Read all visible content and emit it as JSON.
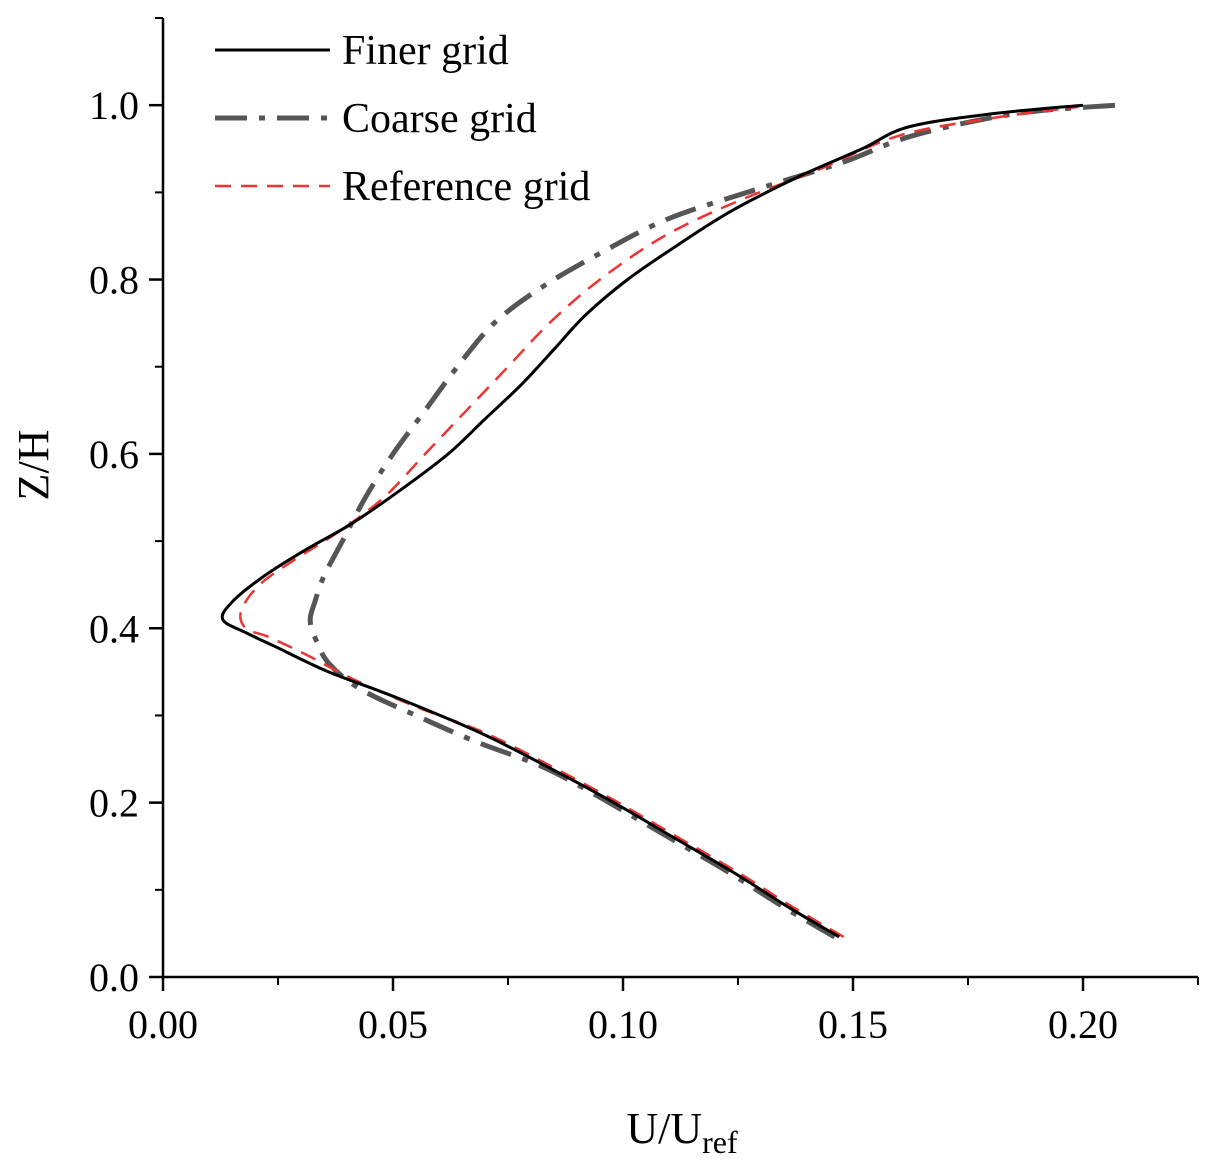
{
  "chart_data": {
    "type": "line",
    "title": "",
    "xlabel": "U/U",
    "xlabel_sub": "ref",
    "ylabel": "Z/H",
    "xlim": [
      0,
      0.225
    ],
    "ylim": [
      0,
      1.1
    ],
    "grid": false,
    "legend_position": "top-left",
    "x_ticks": [
      {
        "value": 0.0,
        "label": "0.00"
      },
      {
        "value": 0.05,
        "label": "0.05"
      },
      {
        "value": 0.1,
        "label": "0.10"
      },
      {
        "value": 0.15,
        "label": "0.15"
      },
      {
        "value": 0.2,
        "label": "0.20"
      }
    ],
    "y_ticks": [
      {
        "value": 0.0,
        "label": "0.0"
      },
      {
        "value": 0.2,
        "label": "0.2"
      },
      {
        "value": 0.4,
        "label": "0.4"
      },
      {
        "value": 0.6,
        "label": "0.6"
      },
      {
        "value": 0.8,
        "label": "0.8"
      },
      {
        "value": 1.0,
        "label": "1.0"
      }
    ],
    "series": [
      {
        "name": "Finer grid",
        "color": "#000000",
        "style": "solid",
        "points": [
          [
            0.147,
            0.046
          ],
          [
            0.136,
            0.08
          ],
          [
            0.124,
            0.12
          ],
          [
            0.111,
            0.16
          ],
          [
            0.098,
            0.2
          ],
          [
            0.084,
            0.24
          ],
          [
            0.069,
            0.28
          ],
          [
            0.051,
            0.32
          ],
          [
            0.036,
            0.35
          ],
          [
            0.024,
            0.38
          ],
          [
            0.018,
            0.395
          ],
          [
            0.013,
            0.41
          ],
          [
            0.015,
            0.43
          ],
          [
            0.022,
            0.46
          ],
          [
            0.031,
            0.49
          ],
          [
            0.041,
            0.52
          ],
          [
            0.052,
            0.56
          ],
          [
            0.062,
            0.6
          ],
          [
            0.07,
            0.64
          ],
          [
            0.078,
            0.68
          ],
          [
            0.085,
            0.72
          ],
          [
            0.092,
            0.76
          ],
          [
            0.101,
            0.8
          ],
          [
            0.112,
            0.84
          ],
          [
            0.124,
            0.88
          ],
          [
            0.139,
            0.92
          ],
          [
            0.152,
            0.95
          ],
          [
            0.162,
            0.975
          ],
          [
            0.18,
            0.99
          ],
          [
            0.2,
            1.0
          ]
        ]
      },
      {
        "name": "Coarse grid",
        "color": "#555555",
        "style": "dashdot",
        "points": [
          [
            0.146,
            0.046
          ],
          [
            0.135,
            0.08
          ],
          [
            0.123,
            0.12
          ],
          [
            0.11,
            0.16
          ],
          [
            0.097,
            0.2
          ],
          [
            0.083,
            0.24
          ],
          [
            0.068,
            0.27
          ],
          [
            0.055,
            0.3
          ],
          [
            0.043,
            0.33
          ],
          [
            0.036,
            0.36
          ],
          [
            0.033,
            0.39
          ],
          [
            0.032,
            0.41
          ],
          [
            0.033,
            0.43
          ],
          [
            0.035,
            0.46
          ],
          [
            0.039,
            0.5
          ],
          [
            0.044,
            0.55
          ],
          [
            0.05,
            0.6
          ],
          [
            0.057,
            0.65
          ],
          [
            0.064,
            0.7
          ],
          [
            0.072,
            0.75
          ],
          [
            0.082,
            0.79
          ],
          [
            0.095,
            0.83
          ],
          [
            0.11,
            0.87
          ],
          [
            0.13,
            0.905
          ],
          [
            0.148,
            0.935
          ],
          [
            0.163,
            0.965
          ],
          [
            0.185,
            0.99
          ],
          [
            0.207,
            1.0
          ]
        ]
      },
      {
        "name": "Reference grid",
        "color": "#ee3333",
        "style": "dashed",
        "points": [
          [
            0.148,
            0.046
          ],
          [
            0.137,
            0.08
          ],
          [
            0.125,
            0.12
          ],
          [
            0.112,
            0.16
          ],
          [
            0.099,
            0.2
          ],
          [
            0.085,
            0.24
          ],
          [
            0.07,
            0.28
          ],
          [
            0.055,
            0.31
          ],
          [
            0.042,
            0.34
          ],
          [
            0.031,
            0.37
          ],
          [
            0.023,
            0.39
          ],
          [
            0.018,
            0.4
          ],
          [
            0.017,
            0.42
          ],
          [
            0.021,
            0.45
          ],
          [
            0.029,
            0.48
          ],
          [
            0.038,
            0.51
          ],
          [
            0.048,
            0.55
          ],
          [
            0.057,
            0.6
          ],
          [
            0.066,
            0.65
          ],
          [
            0.075,
            0.7
          ],
          [
            0.084,
            0.75
          ],
          [
            0.095,
            0.8
          ],
          [
            0.109,
            0.85
          ],
          [
            0.125,
            0.89
          ],
          [
            0.142,
            0.925
          ],
          [
            0.16,
            0.965
          ],
          [
            0.18,
            0.985
          ],
          [
            0.199,
            0.998
          ]
        ]
      }
    ]
  }
}
